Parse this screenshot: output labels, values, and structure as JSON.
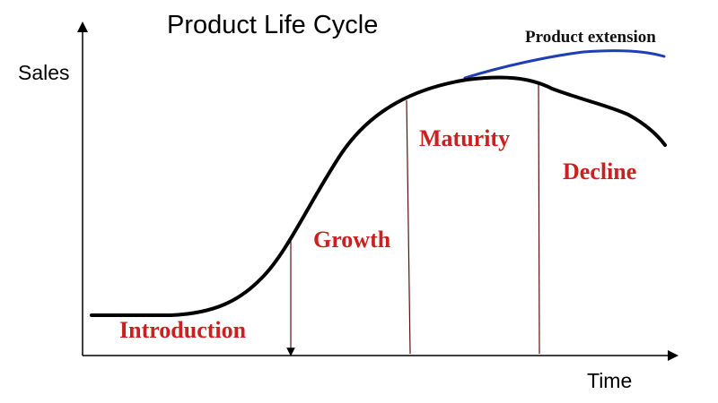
{
  "title": "Product Life Cycle",
  "y_axis_label": "Sales",
  "x_axis_label": "Time",
  "extension_label": "Product extension",
  "stages": [
    "Introduction",
    "Growth",
    "Maturity",
    "Decline"
  ],
  "colors": {
    "stage_text": "#cc1f1f",
    "sales_curve": "#000000",
    "extension_curve": "#1f3fb0",
    "stage_divider": "#5a1010",
    "axis": "#000000"
  }
}
